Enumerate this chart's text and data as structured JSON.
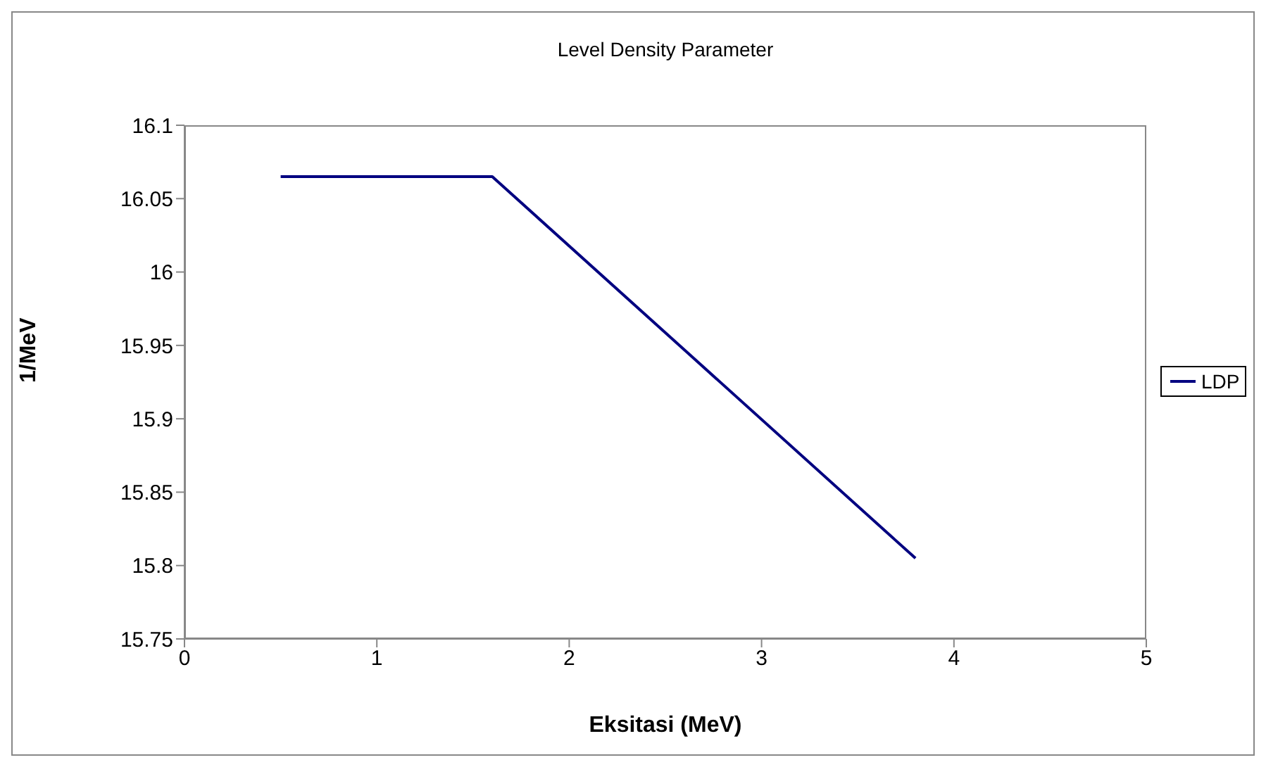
{
  "chart_data": {
    "type": "line",
    "title": "Level Density Parameter",
    "xlabel": "Eksitasi (MeV)",
    "ylabel": "1/MeV",
    "x": [
      0.5,
      1.6,
      3.8
    ],
    "series": [
      {
        "name": "LDP",
        "color": "#000080",
        "values": [
          16.065,
          16.065,
          15.805
        ]
      }
    ],
    "xlim": [
      0,
      5
    ],
    "xticks": [
      0,
      1,
      2,
      3,
      4,
      5
    ],
    "ylim": [
      15.75,
      16.1
    ],
    "yticks": [
      15.75,
      15.8,
      15.85,
      15.9,
      15.95,
      16,
      16.05,
      16.1
    ],
    "grid": false,
    "legend": "right",
    "marker": "none",
    "line_style": "solid"
  }
}
